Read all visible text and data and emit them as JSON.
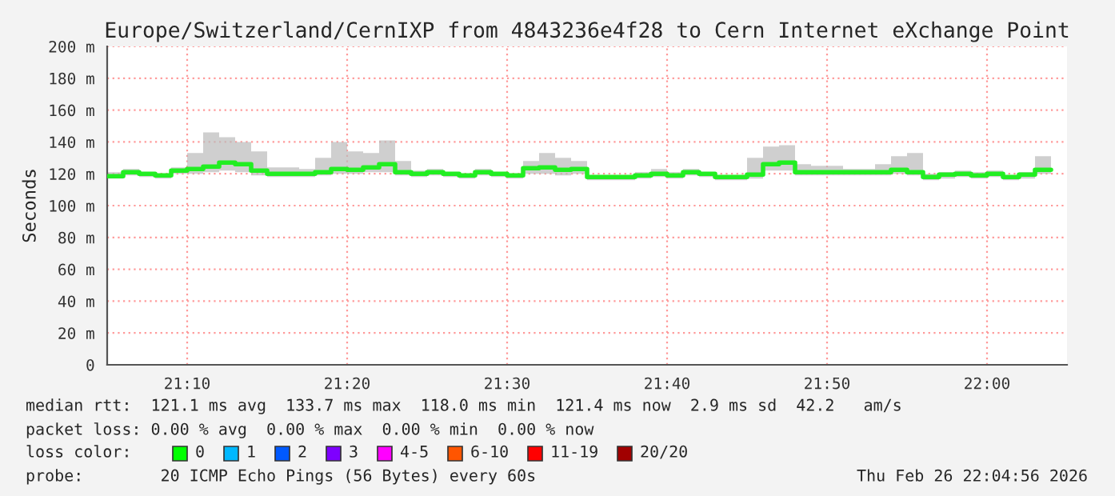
{
  "chart_data": {
    "type": "step",
    "title": "Europe/Switzerland/CernIXP from 4843236e4f28 to Cern Internet eXchange Point",
    "ylabel": "Seconds",
    "x": [
      "2026-02-26T21:05",
      "2026-02-26T21:06",
      "2026-02-26T21:07",
      "2026-02-26T21:08",
      "2026-02-26T21:09",
      "2026-02-26T21:10",
      "2026-02-26T21:11",
      "2026-02-26T21:12",
      "2026-02-26T21:13",
      "2026-02-26T21:14",
      "2026-02-26T21:15",
      "2026-02-26T21:16",
      "2026-02-26T21:17",
      "2026-02-26T21:18",
      "2026-02-26T21:19",
      "2026-02-26T21:20",
      "2026-02-26T21:21",
      "2026-02-26T21:22",
      "2026-02-26T21:23",
      "2026-02-26T21:24",
      "2026-02-26T21:25",
      "2026-02-26T21:26",
      "2026-02-26T21:27",
      "2026-02-26T21:28",
      "2026-02-26T21:29",
      "2026-02-26T21:30",
      "2026-02-26T21:31",
      "2026-02-26T21:32",
      "2026-02-26T21:33",
      "2026-02-26T21:34",
      "2026-02-26T21:35",
      "2026-02-26T21:36",
      "2026-02-26T21:37",
      "2026-02-26T21:38",
      "2026-02-26T21:39",
      "2026-02-26T21:40",
      "2026-02-26T21:41",
      "2026-02-26T21:42",
      "2026-02-26T21:43",
      "2026-02-26T21:44",
      "2026-02-26T21:45",
      "2026-02-26T21:46",
      "2026-02-26T21:47",
      "2026-02-26T21:48",
      "2026-02-26T21:49",
      "2026-02-26T21:50",
      "2026-02-26T21:51",
      "2026-02-26T21:52",
      "2026-02-26T21:53",
      "2026-02-26T21:54",
      "2026-02-26T21:55",
      "2026-02-26T21:56",
      "2026-02-26T21:57",
      "2026-02-26T21:58",
      "2026-02-26T21:59",
      "2026-02-26T22:00",
      "2026-02-26T22:01",
      "2026-02-26T22:02",
      "2026-02-26T22:03",
      "2026-02-26T22:04"
    ],
    "series": [
      {
        "color": "#22ee22",
        "values": [
          118.5,
          121,
          120,
          119,
          122,
          123,
          124.5,
          127,
          126,
          122,
          120,
          120,
          120,
          121,
          123,
          122.5,
          124,
          126,
          121,
          120,
          121,
          120,
          119,
          121,
          120,
          119,
          123.5,
          124,
          122.5,
          123,
          118,
          118,
          118,
          119,
          120,
          119,
          121,
          120,
          118,
          118,
          119.5,
          126,
          127,
          121,
          121,
          121,
          121,
          121,
          121,
          122.5,
          121,
          118,
          119.5,
          120,
          119,
          120,
          118,
          119.5,
          122.5,
          122.5
        ],
        "lower": [
          117,
          119,
          118,
          117,
          120,
          120,
          121,
          122,
          121,
          119,
          118,
          118,
          118,
          119,
          120,
          120,
          121,
          121,
          119,
          118,
          119,
          118,
          117,
          119,
          118,
          117,
          120,
          120,
          119,
          120,
          116,
          116,
          116,
          117,
          118,
          117,
          119,
          118,
          116,
          116,
          117,
          122,
          122,
          119,
          119,
          119,
          119,
          119,
          119,
          120,
          119,
          116,
          117,
          118,
          117,
          118,
          116,
          117,
          120,
          120
        ],
        "upper": [
          121,
          123,
          121,
          120,
          124,
          133,
          146,
          143,
          140,
          134,
          124,
          124,
          123,
          130,
          140,
          134,
          133,
          141,
          128,
          122,
          123,
          121,
          120,
          123,
          121,
          120,
          128,
          133,
          130,
          128,
          119,
          119,
          119,
          121,
          123,
          121,
          123,
          121,
          119,
          119,
          130,
          137,
          138,
          126,
          125,
          125,
          123,
          123,
          126,
          131,
          133,
          120,
          121,
          122,
          121,
          122,
          119,
          121,
          131,
          131
        ]
      }
    ],
    "xlim": [
      "2026-02-26T21:05",
      "2026-02-26T22:05"
    ],
    "xticks": [
      {
        "value": "2026-02-26T21:10",
        "label": "21:10"
      },
      {
        "value": "2026-02-26T21:20",
        "label": "21:20"
      },
      {
        "value": "2026-02-26T21:30",
        "label": "21:30"
      },
      {
        "value": "2026-02-26T21:40",
        "label": "21:40"
      },
      {
        "value": "2026-02-26T21:50",
        "label": "21:50"
      },
      {
        "value": "2026-02-26T22:00",
        "label": "22:00"
      }
    ],
    "ylim": [
      0,
      200
    ],
    "yticks": [
      {
        "value": 0,
        "label": "0"
      },
      {
        "value": 20,
        "label": "20 m"
      },
      {
        "value": 40,
        "label": "40 m"
      },
      {
        "value": 60,
        "label": "60 m"
      },
      {
        "value": 80,
        "label": "80 m"
      },
      {
        "value": 100,
        "label": "100 m"
      },
      {
        "value": 120,
        "label": "120 m"
      },
      {
        "value": 140,
        "label": "140 m"
      },
      {
        "value": 160,
        "label": "160 m"
      },
      {
        "value": 180,
        "label": "180 m"
      },
      {
        "value": 200,
        "label": "200 m"
      }
    ],
    "grid": true,
    "annotations": [
      "median rtt:  121.1 ms avg  133.7 ms max  118.0 ms min  121.4 ms now  2.9 ms sd  42.2   am/s",
      "packet loss: 0.00 % avg  0.00 % max  0.00 % min  0.00 % now",
      "loss color:",
      "0",
      "1",
      "2",
      "3",
      "4-5",
      "6-10",
      "11-19",
      "20/20",
      "probe:        20 ICMP Echo Pings (56 Bytes) every 60s",
      "Thu Feb 26 22:04:56 2026"
    ]
  }
}
